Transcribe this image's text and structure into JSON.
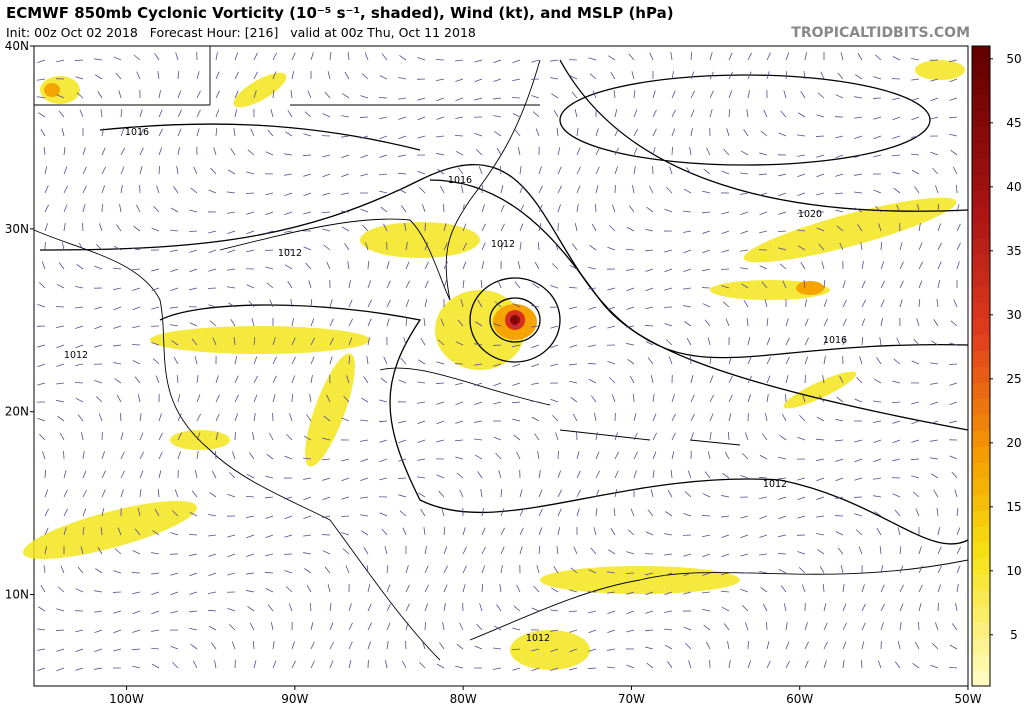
{
  "header": {
    "title": "ECMWF 850mb Cyclonic Vorticity (10⁻⁵ s⁻¹, shaded), Wind (kt), and MSLP (hPa)",
    "subtitle": "Init: 00z Oct 02 2018   Forecast Hour: [216]   valid at 00z Thu, Oct 11 2018",
    "watermark": "TROPICALTIDBITS.COM"
  },
  "map": {
    "lat_range": [
      5,
      40
    ],
    "lon_range": [
      -105.5,
      -50
    ],
    "lat_ticks": [
      {
        "value": 40,
        "label": "40N"
      },
      {
        "value": 30,
        "label": "30N"
      },
      {
        "value": 20,
        "label": "20N"
      },
      {
        "value": 10,
        "label": "10N"
      }
    ],
    "lon_ticks": [
      {
        "value": -100,
        "label": "100W"
      },
      {
        "value": -90,
        "label": "90W"
      },
      {
        "value": -80,
        "label": "80W"
      },
      {
        "value": -70,
        "label": "70W"
      },
      {
        "value": -60,
        "label": "60W"
      },
      {
        "value": -50,
        "label": "50W"
      }
    ],
    "isobar_labels": [
      "1016",
      "1016",
      "1012",
      "1012",
      "1020",
      "1016",
      "1012",
      "1012",
      "1012"
    ]
  },
  "colorbar": {
    "range": [
      1,
      51
    ],
    "ticks": [
      5,
      10,
      15,
      20,
      25,
      30,
      35,
      40,
      45,
      50
    ]
  }
}
